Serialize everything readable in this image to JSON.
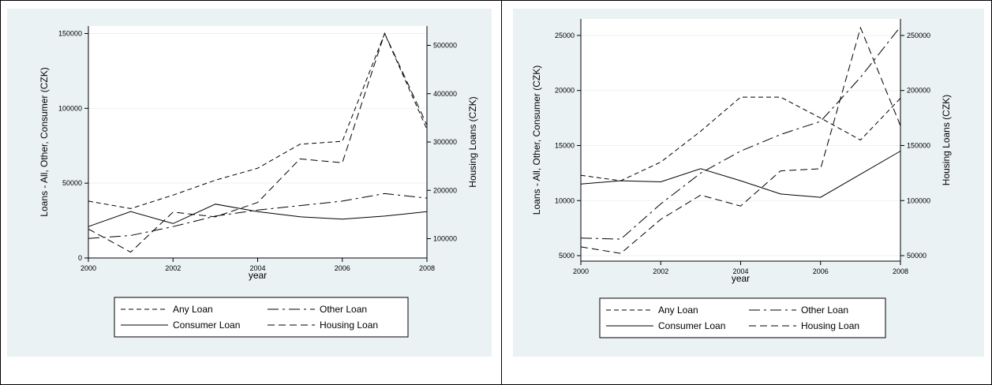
{
  "chart_data": [
    {
      "type": "line",
      "xlabel": "year",
      "ylabel": "Loans - All, Other, Consumer (CZK)",
      "y2label": "Housing Loans (CZK)",
      "xlim": [
        2000,
        2008
      ],
      "ylim": [
        0,
        155000
      ],
      "y2lim": [
        60000,
        540000
      ],
      "x_ticks": [
        2000,
        2002,
        2004,
        2006,
        2008
      ],
      "y_ticks": [
        0,
        50000,
        100000,
        150000
      ],
      "y2_ticks": [
        100000,
        200000,
        300000,
        400000,
        500000
      ],
      "grid": true,
      "legend_position": "bottom",
      "x": [
        2000,
        2001,
        2002,
        2003,
        2004,
        2005,
        2006,
        2007,
        2008
      ],
      "series": [
        {
          "name": "Any Loan",
          "style": "short-dash",
          "axis": "left",
          "values": [
            38000,
            33000,
            42000,
            52000,
            60000,
            76000,
            78000,
            150000,
            86000
          ]
        },
        {
          "name": "Other Loan",
          "style": "long-dash-dot",
          "axis": "left",
          "values": [
            13000,
            15000,
            21000,
            28000,
            32000,
            35000,
            38000,
            43000,
            40000
          ]
        },
        {
          "name": "Consumer Loan",
          "style": "solid",
          "axis": "left",
          "values": [
            21000,
            31000,
            23000,
            36000,
            31000,
            27500,
            26000,
            28000,
            31000
          ]
        },
        {
          "name": "Housing Loan",
          "style": "medium-dash",
          "axis": "right",
          "values": [
            120000,
            72000,
            155000,
            145000,
            175000,
            265000,
            257000,
            525000,
            335000
          ]
        }
      ]
    },
    {
      "type": "line",
      "xlabel": "year",
      "ylabel": "Loans - All, Other, Consumer (CZK)",
      "y2label": "Housing Loans (CZK)",
      "xlim": [
        2000,
        2008
      ],
      "ylim": [
        4500,
        26500
      ],
      "y2lim": [
        45000,
        265000
      ],
      "x_ticks": [
        2000,
        2002,
        2004,
        2006,
        2008
      ],
      "y_ticks": [
        5000,
        10000,
        15000,
        20000,
        25000
      ],
      "y2_ticks": [
        50000,
        100000,
        150000,
        200000,
        250000
      ],
      "grid": true,
      "legend_position": "bottom",
      "x": [
        2000,
        2001,
        2002,
        2003,
        2004,
        2005,
        2006,
        2007,
        2008
      ],
      "series": [
        {
          "name": "Any Loan",
          "style": "short-dash",
          "axis": "left",
          "values": [
            12300,
            11800,
            13500,
            16300,
            19400,
            19400,
            17500,
            15500,
            19300
          ]
        },
        {
          "name": "Other Loan",
          "style": "long-dash-dot",
          "axis": "left",
          "values": [
            6600,
            6500,
            9700,
            12500,
            14500,
            16000,
            17200,
            21200,
            25800
          ]
        },
        {
          "name": "Consumer Loan",
          "style": "solid",
          "axis": "left",
          "values": [
            11500,
            11800,
            11700,
            12900,
            11800,
            10600,
            10300,
            12400,
            14500
          ]
        },
        {
          "name": "Housing Loan",
          "style": "medium-dash",
          "axis": "right",
          "values": [
            58000,
            52000,
            83000,
            105000,
            95000,
            127000,
            129000,
            257000,
            168000
          ]
        }
      ]
    }
  ]
}
